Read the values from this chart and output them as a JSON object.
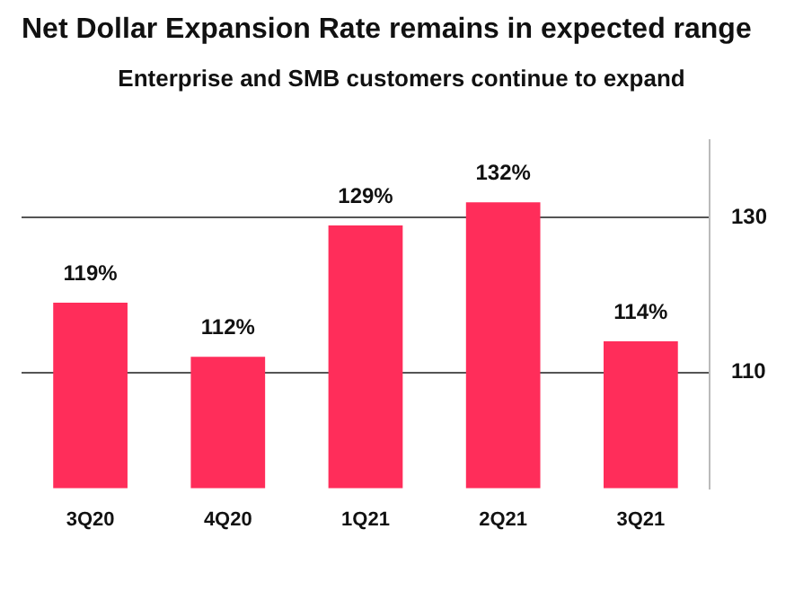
{
  "chart_data": {
    "type": "bar",
    "title": "Net Dollar Expansion Rate remains in expected range",
    "subtitle": "Enterprise and SMB customers continue to expand",
    "categories": [
      "3Q20",
      "4Q20",
      "1Q21",
      "2Q21",
      "3Q21"
    ],
    "values": [
      119,
      112,
      129,
      132,
      114
    ],
    "value_labels": [
      "119%",
      "112%",
      "129%",
      "132%",
      "114%"
    ],
    "color": "#ff2d5a",
    "ylim": [
      95,
      140
    ],
    "yticks": [
      110,
      130
    ],
    "grid": "y",
    "legend": false
  }
}
